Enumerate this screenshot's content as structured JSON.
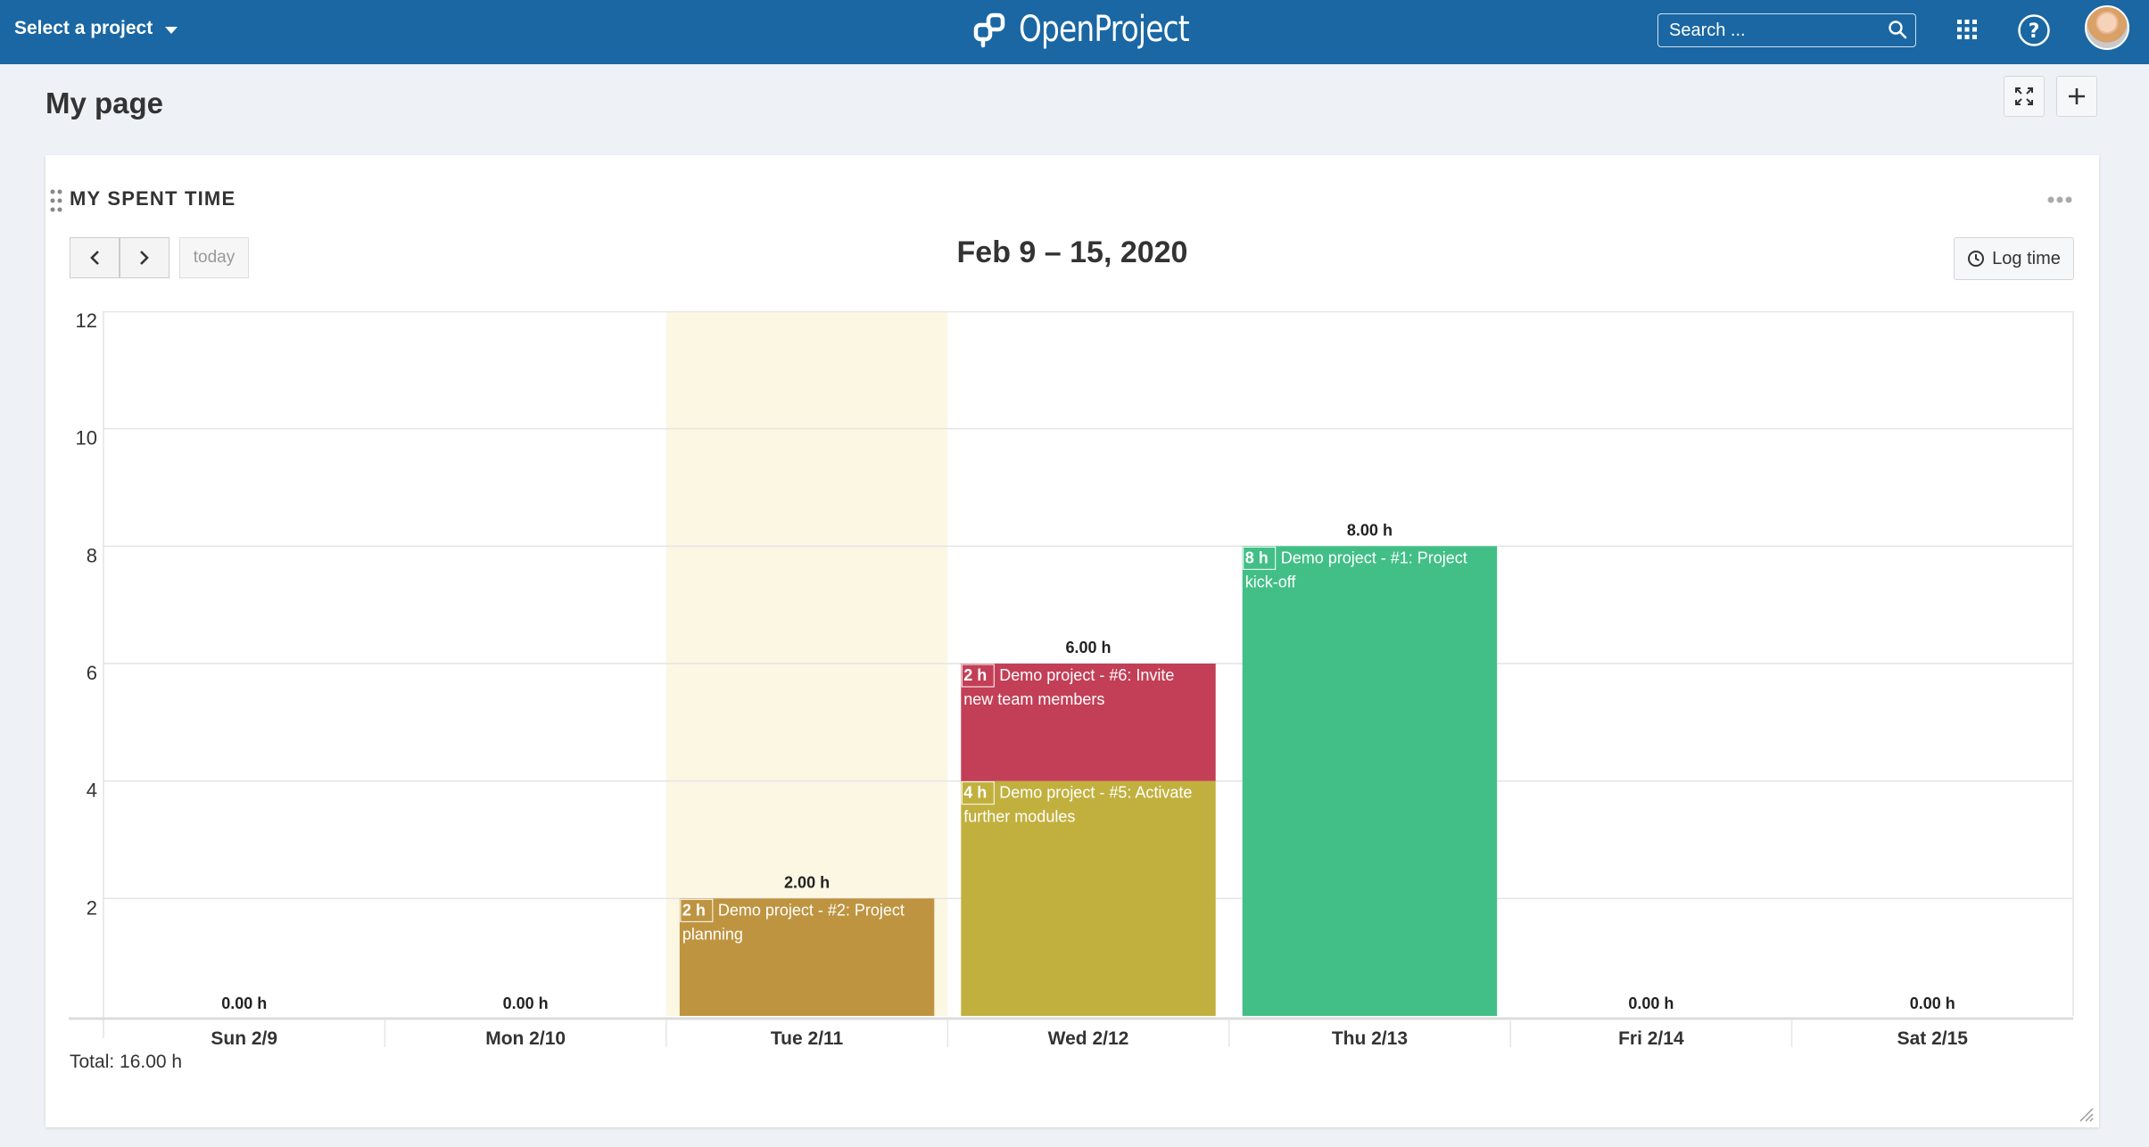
{
  "header": {
    "project_select": "Select a project",
    "logo_text": "OpenProject",
    "search_placeholder": "Search ...",
    "icons": [
      "search-icon",
      "modules-grid-icon",
      "help-icon",
      "avatar"
    ]
  },
  "page": {
    "title": "My page",
    "toolbar_icons": [
      "fullscreen-icon",
      "add-icon"
    ]
  },
  "widget": {
    "title": "MY SPENT TIME",
    "today_label": "today",
    "range_title": "Feb 9 – 15, 2020",
    "log_time_label": "Log time",
    "total_label": "Total: 16.00 h"
  },
  "colors": {
    "header_bg": "#1a67a3",
    "highlight_bg": "#fcf7e3",
    "project_planning": "#be9440",
    "activate_modules": "#c1b03e",
    "invite_members": "#c23f57",
    "project_kickoff": "#42bf87"
  },
  "chart_data": {
    "type": "bar",
    "stacked": true,
    "ylim": [
      0,
      12
    ],
    "yticks": [
      2,
      4,
      6,
      8,
      10,
      12
    ],
    "highlighted_day": "Tue 2/11",
    "days": [
      {
        "label": "Sun 2/9",
        "total": "0.00 h",
        "entries": []
      },
      {
        "label": "Mon 2/10",
        "total": "0.00 h",
        "entries": []
      },
      {
        "label": "Tue 2/11",
        "total": "2.00 h",
        "entries": [
          {
            "hours": 2,
            "hours_label": "2 h",
            "text": "Demo project - #2: Project planning",
            "color": "#be9440"
          }
        ]
      },
      {
        "label": "Wed 2/12",
        "total": "6.00 h",
        "entries": [
          {
            "hours": 4,
            "hours_label": "4 h",
            "text": "Demo project - #5: Activate further modules",
            "color": "#c1b03e"
          },
          {
            "hours": 2,
            "hours_label": "2 h",
            "text": "Demo project - #6: Invite new team members",
            "color": "#c23f57"
          }
        ]
      },
      {
        "label": "Thu 2/13",
        "total": "8.00 h",
        "entries": [
          {
            "hours": 8,
            "hours_label": "8 h",
            "text": "Demo project - #1: Project kick-off",
            "color": "#42bf87"
          }
        ]
      },
      {
        "label": "Fri 2/14",
        "total": "0.00 h",
        "entries": []
      },
      {
        "label": "Sat 2/15",
        "total": "0.00 h",
        "entries": []
      }
    ]
  }
}
